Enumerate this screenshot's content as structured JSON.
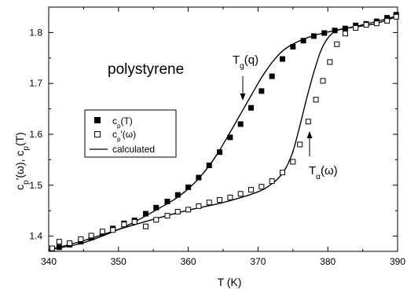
{
  "chart_data": {
    "type": "scatter",
    "title": "",
    "xlabel": "T (K)",
    "ylabel": "c_p'(ω), c_p(T)",
    "xlim": [
      340,
      390
    ],
    "ylim": [
      1.37,
      1.85
    ],
    "x_ticks": [
      340,
      350,
      360,
      370,
      380,
      390
    ],
    "y_ticks": [
      1.4,
      1.5,
      1.6,
      1.7,
      1.8
    ],
    "x_tick_labels": [
      "340",
      "350",
      "360",
      "370",
      "380",
      "390"
    ],
    "y_tick_labels": [
      "1.4",
      "1.5",
      "1.6",
      "1.7",
      "1.8"
    ],
    "grid": false,
    "legend_position": "middle-left",
    "annotations": {
      "material": "polystyrene",
      "tg_base": "T",
      "tg_sub": "g",
      "tg_tail": "(q)",
      "ta_base": "T",
      "ta_sub": "α",
      "ta_tail": "(ω)"
    },
    "legend": {
      "cp_main": "c",
      "cp_sub": "p",
      "cp_tail": "(T)",
      "cpw_main": "c",
      "cpw_sub": "p",
      "cpw_tail": "'(ω)",
      "calc": "calculated"
    },
    "series": [
      {
        "name": "c_p(T)",
        "marker": "filled-square",
        "x": [
          341.5,
          343.0,
          344.6,
          346.1,
          347.7,
          349.2,
          350.8,
          352.3,
          353.9,
          355.4,
          357.0,
          358.5,
          360.0,
          361.5,
          363.0,
          364.5,
          366.0,
          367.5,
          369.0,
          370.5,
          372.0,
          373.5,
          375.0,
          376.5,
          378.0,
          379.5,
          381.0,
          382.5,
          384.0,
          385.5,
          387.0,
          388.5,
          389.8
        ],
        "y": [
          1.378,
          1.383,
          1.389,
          1.397,
          1.406,
          1.415,
          1.425,
          1.431,
          1.444,
          1.456,
          1.468,
          1.481,
          1.496,
          1.515,
          1.539,
          1.565,
          1.594,
          1.62,
          1.652,
          1.685,
          1.714,
          1.748,
          1.772,
          1.784,
          1.793,
          1.799,
          1.804,
          1.808,
          1.814,
          1.817,
          1.822,
          1.829,
          1.835
        ]
      },
      {
        "name": "c_p'(ω)",
        "marker": "open-square",
        "x": [
          340.5,
          341.5,
          343.0,
          344.6,
          346.1,
          347.7,
          349.2,
          350.8,
          352.3,
          353.9,
          355.4,
          357.0,
          358.5,
          360.0,
          361.5,
          363.0,
          364.5,
          366.0,
          367.5,
          369.0,
          370.5,
          372.0,
          373.5,
          375.0,
          376.0,
          377.2,
          378.3,
          379.3,
          380.3,
          381.3,
          382.5,
          384.0,
          385.5,
          387.0,
          388.5,
          389.8
        ],
        "y": [
          1.376,
          1.389,
          1.386,
          1.394,
          1.401,
          1.409,
          1.412,
          1.423,
          1.428,
          1.419,
          1.432,
          1.44,
          1.448,
          1.452,
          1.459,
          1.466,
          1.471,
          1.476,
          1.483,
          1.491,
          1.497,
          1.508,
          1.525,
          1.546,
          1.58,
          1.625,
          1.668,
          1.705,
          1.742,
          1.777,
          1.798,
          1.809,
          1.815,
          1.818,
          1.823,
          1.831
        ]
      },
      {
        "name": "calculated",
        "marker": "line",
        "curves": [
          {
            "x": [
              340,
              345,
              350,
              353,
              356,
              358,
              360,
              362,
              364,
              366,
              368,
              370,
              371,
              372,
              373,
              374,
              376,
              378,
              380,
              385,
              390
            ],
            "y": [
              1.373,
              1.387,
              1.413,
              1.433,
              1.456,
              1.472,
              1.493,
              1.521,
              1.558,
              1.604,
              1.652,
              1.7,
              1.722,
              1.741,
              1.757,
              1.769,
              1.784,
              1.794,
              1.801,
              1.815,
              1.833
            ]
          },
          {
            "x": [
              340,
              345,
              350,
              355,
              360,
              365,
              370,
              372,
              373,
              374,
              375,
              376,
              377,
              378,
              379,
              380,
              381,
              382,
              383,
              385,
              387,
              390
            ],
            "y": [
              1.373,
              1.391,
              1.413,
              1.433,
              1.451,
              1.466,
              1.487,
              1.503,
              1.515,
              1.534,
              1.566,
              1.617,
              1.672,
              1.722,
              1.764,
              1.789,
              1.802,
              1.807,
              1.809,
              1.813,
              1.818,
              1.832
            ]
          }
        ]
      }
    ],
    "colors": {
      "ink": "#000000",
      "background": "#ffffff"
    }
  }
}
